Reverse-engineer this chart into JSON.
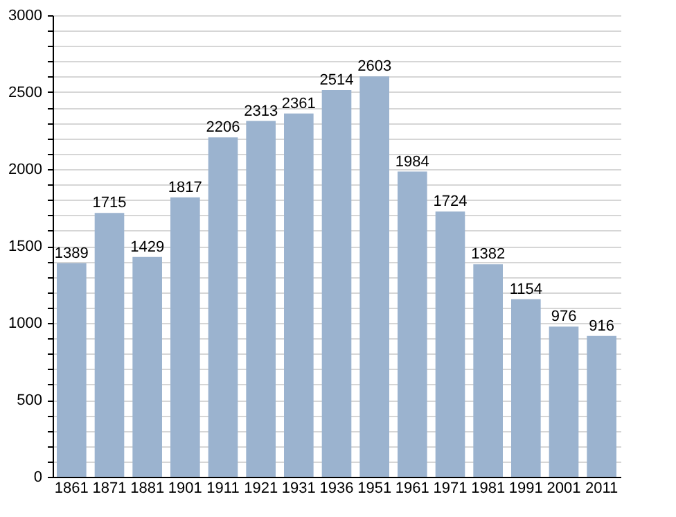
{
  "chart_data": {
    "type": "bar",
    "categories": [
      "1861",
      "1871",
      "1881",
      "1901",
      "1911",
      "1921",
      "1931",
      "1936",
      "1951",
      "1961",
      "1971",
      "1981",
      "1991",
      "2001",
      "2011"
    ],
    "values": [
      1389,
      1715,
      1429,
      1817,
      2206,
      2313,
      2361,
      2514,
      2603,
      1984,
      1724,
      1382,
      1154,
      976,
      916
    ],
    "color": "#9bb3cf",
    "ylim": [
      0,
      3000
    ],
    "yticks": [
      0,
      {
        "value": 100,
        "label": null
      },
      {
        "value": 200,
        "label": null
      },
      {
        "value": 300,
        "label": null
      },
      {
        "value": 400,
        "label": null
      },
      500,
      {
        "value": 600,
        "label": null
      },
      {
        "value": 700,
        "label": null
      },
      {
        "value": 800,
        "label": null
      },
      {
        "value": 900,
        "label": null
      },
      1000,
      {
        "value": 1100,
        "label": null
      },
      {
        "value": 1200,
        "label": null
      },
      {
        "value": 1300,
        "label": null
      },
      {
        "value": 1400,
        "label": null
      },
      1500,
      {
        "value": 1600,
        "label": null
      },
      {
        "value": 1700,
        "label": null
      },
      {
        "value": 1800,
        "label": null
      },
      {
        "value": 1900,
        "label": null
      },
      2000,
      {
        "value": 2100,
        "label": null
      },
      {
        "value": 2200,
        "label": null
      },
      {
        "value": 2300,
        "label": null
      },
      {
        "value": 2400,
        "label": null
      },
      2500,
      {
        "value": 2600,
        "label": null
      },
      {
        "value": 2700,
        "label": null
      },
      {
        "value": 2800,
        "label": null
      },
      {
        "value": 2900,
        "label": null
      },
      3000
    ],
    "grid": "y",
    "data_labels": true
  }
}
